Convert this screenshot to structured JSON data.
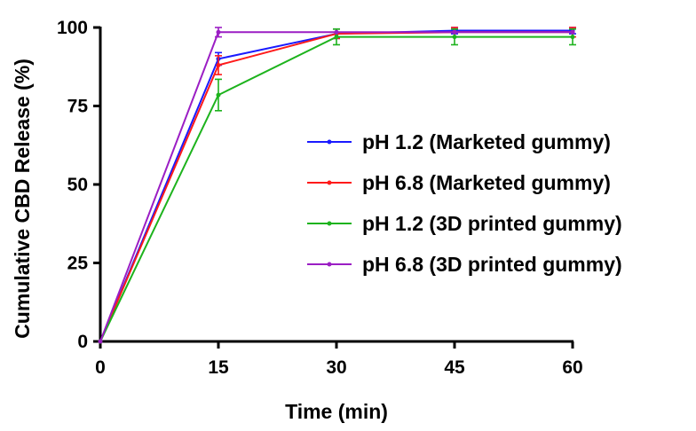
{
  "chart_data": {
    "type": "line",
    "xlabel": "Time (min)",
    "ylabel": "Cumulative CBD Release (%)",
    "x": [
      0,
      15,
      30,
      45,
      60
    ],
    "xticks": [
      "0",
      "15",
      "30",
      "45",
      "60"
    ],
    "yticks": [
      "0",
      "25",
      "50",
      "75",
      "100"
    ],
    "xlim": [
      0,
      60
    ],
    "ylim": [
      0,
      100
    ],
    "grid": false,
    "legend_position": "center-right",
    "series": [
      {
        "name": "pH 1.2 (Marketed gummy)",
        "color": "#1a1aff",
        "values": [
          0,
          90,
          98,
          99,
          99
        ],
        "errors": [
          0,
          2,
          1.5,
          1,
          1
        ]
      },
      {
        "name": "pH 6.8 (Marketed gummy)",
        "color": "#ff1a1a",
        "values": [
          0,
          88,
          98,
          98.5,
          98.5
        ],
        "errors": [
          0,
          3,
          1.5,
          1.5,
          1.5
        ]
      },
      {
        "name": "pH 1.2 (3D printed gummy)",
        "color": "#1db31d",
        "values": [
          0,
          78.5,
          97,
          97,
          97
        ],
        "errors": [
          0,
          5,
          2.5,
          2.5,
          2.5
        ]
      },
      {
        "name": "pH 6.8 (3D printed gummy)",
        "color": "#9b1ec4",
        "values": [
          0,
          98.5,
          98.5,
          98.5,
          98.5
        ],
        "errors": [
          0,
          1.5,
          0,
          0,
          0
        ]
      }
    ]
  }
}
